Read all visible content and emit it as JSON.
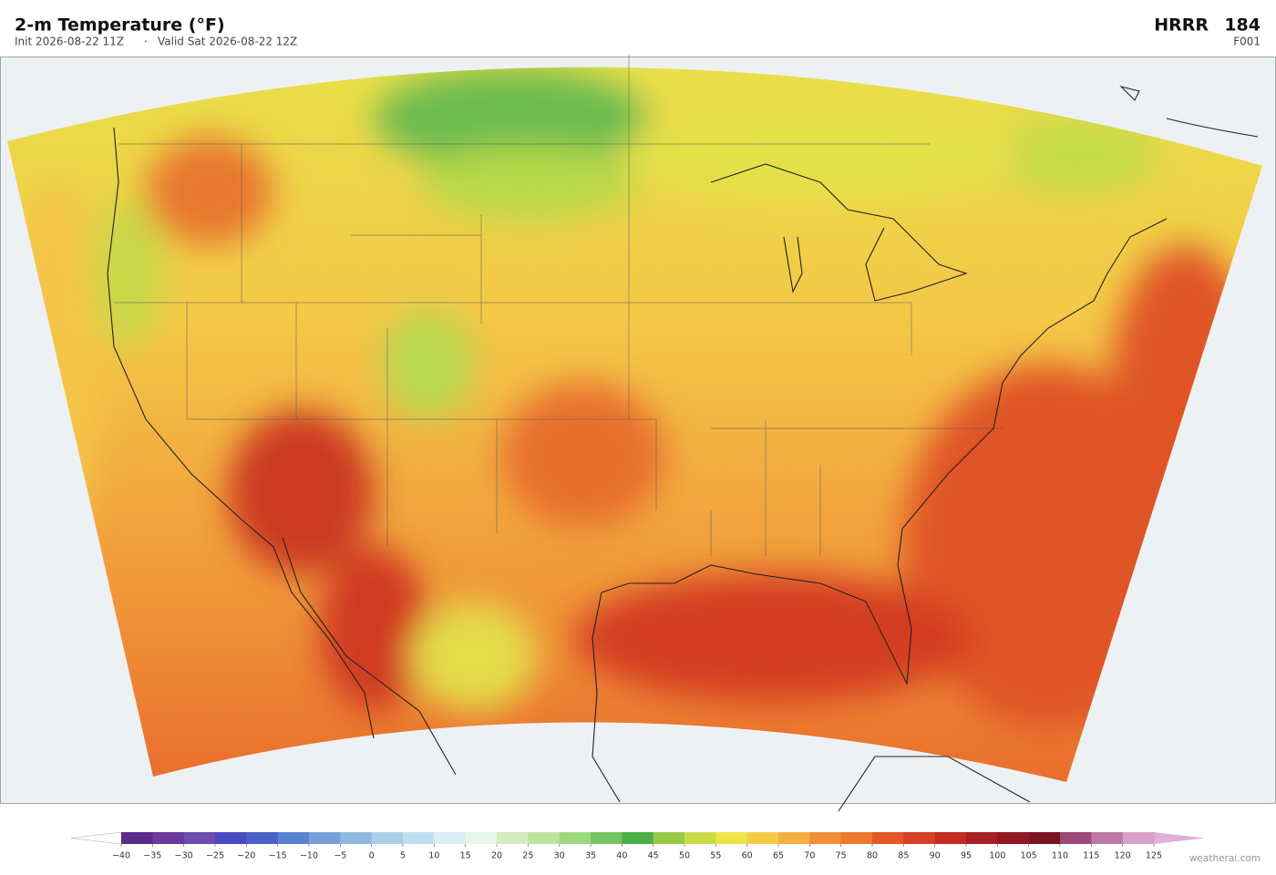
{
  "header": {
    "title": "2-m Temperature  (°F)",
    "init": "Init 2026-08-22 11Z",
    "separator": "·",
    "valid": "Valid Sat 2026-08-22 12Z",
    "model": "HRRR",
    "run": "184",
    "forecast_hour": "F001"
  },
  "colorbar": {
    "ticks": [
      {
        "value": -40,
        "label": "−40"
      },
      {
        "value": -35,
        "label": "−35"
      },
      {
        "value": -30,
        "label": "−30"
      },
      {
        "value": -25,
        "label": "−25"
      },
      {
        "value": -20,
        "label": "−20"
      },
      {
        "value": -15,
        "label": "−15"
      },
      {
        "value": -10,
        "label": "−10"
      },
      {
        "value": -5,
        "label": "−5"
      },
      0,
      5,
      10,
      15,
      20,
      25,
      30,
      35,
      40,
      45,
      50,
      55,
      60,
      65,
      70,
      75,
      80,
      85,
      90,
      95,
      100,
      105,
      110,
      115,
      120,
      125
    ],
    "colors": [
      "#5a2d8c",
      "#6a3a9c",
      "#6e4cb0",
      "#4a4ac0",
      "#4a62c8",
      "#5a82d0",
      "#7aa0d8",
      "#90b8e0",
      "#a8d0e8",
      "#c0e0f0",
      "#d8f0f4",
      "#e8f6e8",
      "#d4ecc0",
      "#bce4a0",
      "#9cd880",
      "#78c460",
      "#4cb048",
      "#98c848",
      "#cadc48",
      "#ece448",
      "#f4cc48",
      "#f4b040",
      "#f09038",
      "#ec7830",
      "#e45828",
      "#d84024",
      "#c42c24",
      "#a82024",
      "#901820",
      "#7c1420",
      "#9c4878",
      "#bc78a8",
      "#d8a0cc"
    ],
    "under_color": "#ffffff",
    "over_color": "#e0b0d8"
  },
  "watermark": "weatherai.com"
}
